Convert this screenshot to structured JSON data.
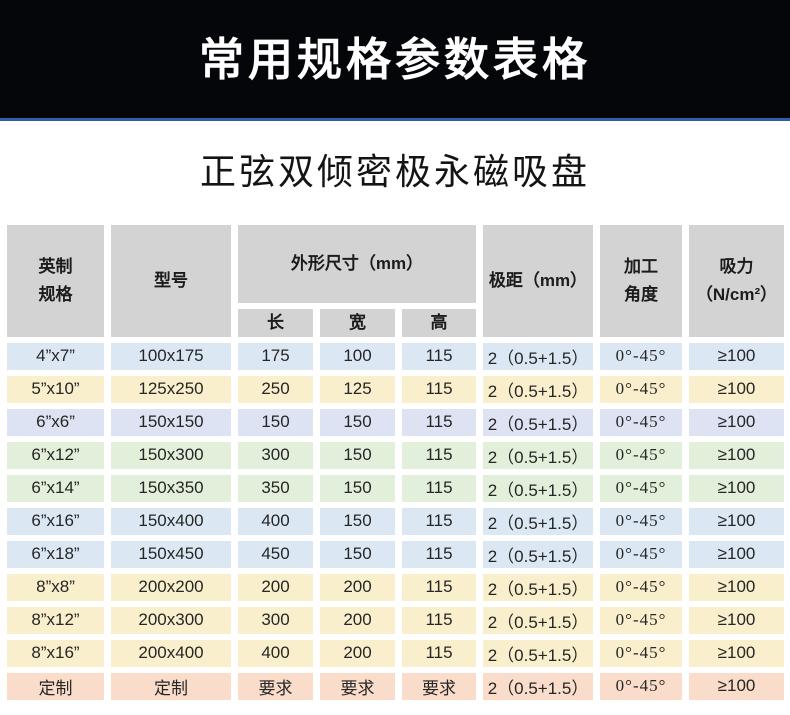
{
  "banner": {
    "title": "常用规格参数表格"
  },
  "page": {
    "subtitle": "正弦双倾密极永磁吸盘"
  },
  "table": {
    "headers": {
      "imperial": "英制\n规格",
      "model": "型号",
      "dimensions": "外形尺寸（mm）",
      "sub_length": "长",
      "sub_width": "宽",
      "sub_height": "高",
      "pole_pitch": "极距（mm）",
      "angle": "加工\n角度",
      "suction": "吸力\n（N/cm²）"
    },
    "rows": [
      {
        "imperial": "4”x7”",
        "model": "100x175",
        "length": "175",
        "width": "100",
        "height": "115",
        "pole_pitch": "2（0.5+1.5）",
        "angle": "0°-45°",
        "suction": "≥100",
        "color": "blue"
      },
      {
        "imperial": "5”x10”",
        "model": "125x250",
        "length": "250",
        "width": "125",
        "height": "115",
        "pole_pitch": "2（0.5+1.5）",
        "angle": "0°-45°",
        "suction": "≥100",
        "color": "yellow"
      },
      {
        "imperial": "6”x6”",
        "model": "150x150",
        "length": "150",
        "width": "150",
        "height": "115",
        "pole_pitch": "2（0.5+1.5）",
        "angle": "0°-45°",
        "suction": "≥100",
        "color": "blue2"
      },
      {
        "imperial": "6”x12”",
        "model": "150x300",
        "length": "300",
        "width": "150",
        "height": "115",
        "pole_pitch": "2（0.5+1.5）",
        "angle": "0°-45°",
        "suction": "≥100",
        "color": "green"
      },
      {
        "imperial": "6”x14”",
        "model": "150x350",
        "length": "350",
        "width": "150",
        "height": "115",
        "pole_pitch": "2（0.5+1.5）",
        "angle": "0°-45°",
        "suction": "≥100",
        "color": "green"
      },
      {
        "imperial": "6”x16”",
        "model": "150x400",
        "length": "400",
        "width": "150",
        "height": "115",
        "pole_pitch": "2（0.5+1.5）",
        "angle": "0°-45°",
        "suction": "≥100",
        "color": "blue"
      },
      {
        "imperial": "6”x18”",
        "model": "150x450",
        "length": "450",
        "width": "150",
        "height": "115",
        "pole_pitch": "2（0.5+1.5）",
        "angle": "0°-45°",
        "suction": "≥100",
        "color": "blue"
      },
      {
        "imperial": "8”x8”",
        "model": "200x200",
        "length": "200",
        "width": "200",
        "height": "115",
        "pole_pitch": "2（0.5+1.5）",
        "angle": "0°-45°",
        "suction": "≥100",
        "color": "yellow"
      },
      {
        "imperial": "8”x12”",
        "model": "200x300",
        "length": "300",
        "width": "200",
        "height": "115",
        "pole_pitch": "2（0.5+1.5）",
        "angle": "0°-45°",
        "suction": "≥100",
        "color": "yellow"
      },
      {
        "imperial": "8”x16”",
        "model": "200x400",
        "length": "400",
        "width": "200",
        "height": "115",
        "pole_pitch": "2（0.5+1.5）",
        "angle": "0°-45°",
        "suction": "≥100",
        "color": "yellow"
      },
      {
        "imperial": "定制",
        "model": "定制",
        "length": "要求",
        "width": "要求",
        "height": "要求",
        "pole_pitch": "2（0.5+1.5）",
        "angle": "0°-45°",
        "suction": "≥100",
        "color": "pink"
      }
    ]
  },
  "colors": {
    "banner_bg": "#05060a",
    "banner_rule": "#2e5ea8",
    "banner_text": "#ffffff",
    "header_bg": "#d3d3d3",
    "row_blue": "#dbe8f4",
    "row_blue2": "#dde3f3",
    "row_yellow": "#faefcc",
    "row_green": "#e2efda",
    "row_pink": "#f9dcc9"
  }
}
